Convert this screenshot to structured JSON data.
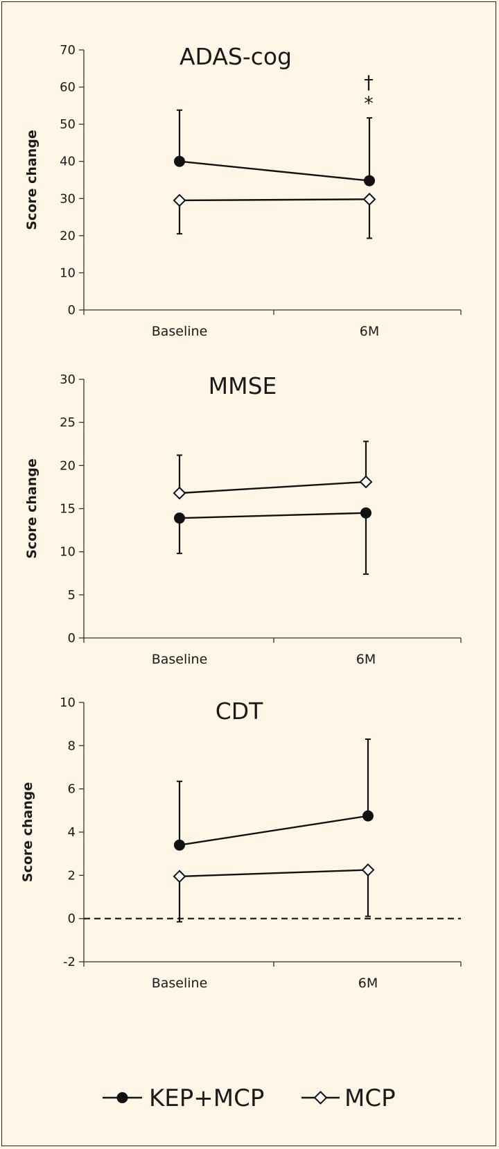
{
  "legend": {
    "entries": [
      {
        "name": "KEP+MCP",
        "marker": "filled-circle",
        "color": "#111111"
      },
      {
        "name": "MCP",
        "marker": "open-diamond",
        "color": "#111111"
      }
    ],
    "placement": "bottom"
  },
  "chart_data": [
    {
      "type": "line",
      "title": "ADAS-cog",
      "ylabel": "Score change",
      "xlabel": "",
      "categories": [
        "Baseline",
        "6M"
      ],
      "ylim": [
        0,
        70
      ],
      "yticks": [
        0,
        10,
        20,
        30,
        40,
        50,
        60,
        70
      ],
      "ytick_labels": [
        "0",
        "10",
        "20",
        "30",
        "40",
        "50",
        "60",
        "70"
      ],
      "grid": false,
      "series": [
        {
          "name": "KEP+MCP",
          "values": [
            40,
            34.8
          ],
          "error_upper": [
            53.8,
            51.7
          ],
          "error_lower": [
            null,
            null
          ]
        },
        {
          "name": "MCP",
          "values": [
            29.5,
            29.8
          ],
          "error_upper": [
            null,
            null
          ],
          "error_lower": [
            20.5,
            19.3
          ]
        }
      ],
      "annotations": [
        {
          "text": "†",
          "category": "6M"
        },
        {
          "text": "*",
          "category": "6M"
        }
      ]
    },
    {
      "type": "line",
      "title": "MMSE",
      "ylabel": "Score change",
      "xlabel": "",
      "categories": [
        "Baseline",
        "6M"
      ],
      "ylim": [
        0,
        30
      ],
      "yticks": [
        0,
        5,
        10,
        15,
        20,
        25,
        30
      ],
      "ytick_labels": [
        "0",
        "5",
        "10",
        "15",
        "20",
        "25",
        "30"
      ],
      "grid": false,
      "series": [
        {
          "name": "KEP+MCP",
          "values": [
            13.9,
            14.5
          ],
          "error_upper": [
            null,
            null
          ],
          "error_lower": [
            9.8,
            7.4
          ]
        },
        {
          "name": "MCP",
          "values": [
            16.8,
            18.1
          ],
          "error_upper": [
            21.2,
            22.8
          ],
          "error_lower": [
            null,
            null
          ]
        }
      ],
      "annotations": []
    },
    {
      "type": "line",
      "title": "CDT",
      "ylabel": "Score change",
      "xlabel": "",
      "categories": [
        "Baseline",
        "6M"
      ],
      "ylim": [
        -2,
        10
      ],
      "yticks": [
        -2,
        0,
        2,
        4,
        6,
        8,
        10
      ],
      "ytick_labels": [
        "-2",
        "0",
        "2",
        "4",
        "6",
        "8",
        "10"
      ],
      "grid": false,
      "reference_line": {
        "y": 0,
        "style": "dashed"
      },
      "series": [
        {
          "name": "KEP+MCP",
          "values": [
            3.4,
            4.75
          ],
          "error_upper": [
            6.35,
            8.3
          ],
          "error_lower": [
            null,
            null
          ]
        },
        {
          "name": "MCP",
          "values": [
            1.95,
            2.25
          ],
          "error_upper": [
            null,
            null
          ],
          "error_lower": [
            -0.15,
            0.1
          ]
        }
      ],
      "annotations": []
    }
  ]
}
